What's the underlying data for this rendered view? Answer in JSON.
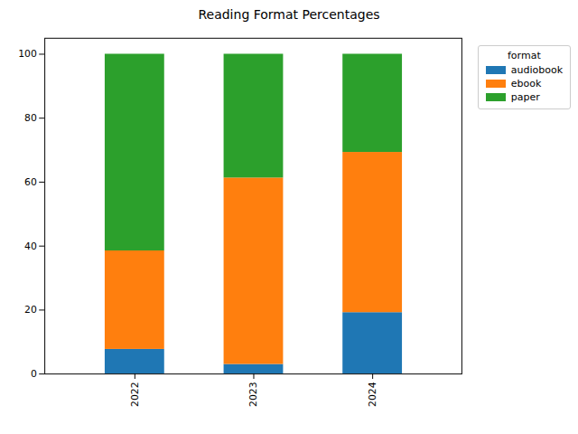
{
  "chart_data": {
    "type": "bar",
    "title": "Reading Format Percentages",
    "categories": [
      "2022",
      "2023",
      "2024"
    ],
    "series": [
      {
        "name": "audiobook",
        "color": "#1f77b4",
        "values": [
          7.7,
          3.0,
          19.2
        ]
      },
      {
        "name": "ebook",
        "color": "#ff7f0e",
        "values": [
          30.8,
          58.3,
          50.1
        ]
      },
      {
        "name": "paper",
        "color": "#2ca02c",
        "values": [
          61.5,
          38.7,
          30.7
        ]
      }
    ],
    "stacked": true,
    "legend": "upper right",
    "legend_title": "format",
    "ylim": [
      0,
      105
    ],
    "yticks": [
      0,
      20,
      40,
      60,
      80,
      100
    ],
    "grid": false
  }
}
